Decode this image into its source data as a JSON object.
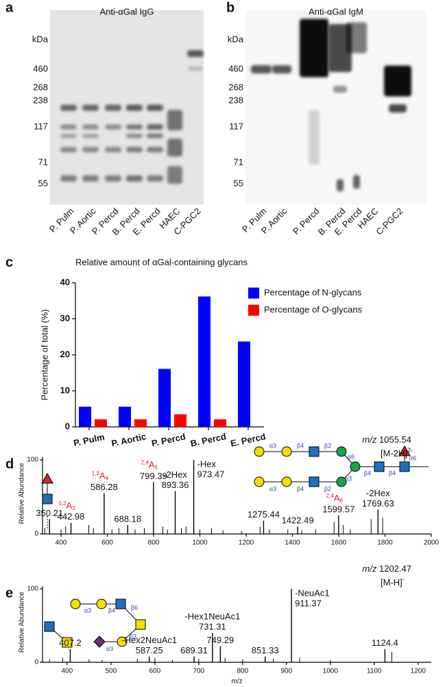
{
  "panels": [
    {
      "label": "a",
      "title": "Anti-αGal IgG",
      "unit": "kDa",
      "markers": [
        460,
        268,
        238,
        117,
        71,
        55
      ],
      "lanes": [
        "P. Pulm",
        "P. Aortic",
        "P. Percd",
        "B. Percd",
        "E. Percd",
        "HAEC",
        "C-PGC2"
      ]
    },
    {
      "label": "b",
      "title": "Anti-αGal IgM",
      "unit": "kDa",
      "markers": [
        460,
        268,
        238,
        117,
        71,
        55
      ],
      "lanes": [
        "P. Pulm",
        "P. Aortic",
        "P. Percd",
        "B. Percd",
        "E. Percd",
        "HAEC",
        "C-PGC2"
      ]
    }
  ],
  "chart_data": [
    {
      "type": "bar",
      "label": "c",
      "title": "Relative amount of αGal-containing glycans",
      "y_label": "Percentage of total (%)",
      "categories": [
        "P. Pulm",
        "P. Aortic",
        "P. Percd",
        "B. Percd",
        "E. Percd"
      ],
      "series": [
        {
          "name": "Percentage of N-glycans",
          "color": "#0000ff",
          "values": [
            5.6,
            5.6,
            16.1,
            36.2,
            23.7
          ]
        },
        {
          "name": "Percentage of O-glycans",
          "color": "#ff0000",
          "values": [
            2.1,
            2.1,
            3.5,
            2.1,
            null
          ]
        }
      ],
      "ylim": [
        0,
        40
      ],
      "yticks": [
        0,
        10,
        20,
        30,
        40
      ]
    },
    {
      "type": "spectrum",
      "label": "d",
      "y_label": "Relative Abundance",
      "precursor_prefix": "m/z",
      "precursor": 1055.54,
      "ion": "[M-2H]",
      "charge": "2-",
      "color": "#000000",
      "x": [
        350.21,
        442.98,
        586.28,
        688.18,
        799.39,
        893.36,
        973.47,
        1275.44,
        1422.49,
        1599.57,
        1769.63
      ],
      "values": [
        20,
        15,
        55,
        12,
        70,
        58,
        100,
        18,
        10,
        25,
        33
      ],
      "notes": [
        null,
        null,
        null,
        null,
        null,
        "-2Hex",
        "-Hex",
        null,
        null,
        null,
        "-2Hex"
      ],
      "fragments": [
        null,
        {
          "sup": "0,2",
          "main": "A",
          "sub": "3"
        },
        {
          "sup": "1,3",
          "main": "A",
          "sub": "4"
        },
        null,
        {
          "sup": "2,4",
          "main": "A",
          "sub": "6"
        },
        null,
        null,
        null,
        null,
        {
          "sup": "2,4",
          "main": "A",
          "sub": "6"
        },
        null
      ],
      "minor": {
        "x": [
          330,
          400,
          420,
          520,
          540,
          620,
          650,
          720,
          760,
          840,
          860,
          920,
          940,
          1000,
          1050,
          1100,
          1180,
          1260,
          1300,
          1380,
          1440,
          1500,
          1580,
          1620,
          1650,
          1740,
          1790
        ],
        "values": [
          8,
          6,
          10,
          12,
          8,
          6,
          8,
          6,
          8,
          10,
          6,
          8,
          10,
          6,
          8,
          5,
          4,
          10,
          6,
          6,
          5,
          6,
          16,
          12,
          6,
          20,
          22
        ]
      },
      "xlim": [
        320,
        2000
      ],
      "xticks": [
        400,
        600,
        800,
        1000,
        1200,
        1400,
        1600,
        1800,
        2000
      ],
      "ylim": [
        0,
        100
      ],
      "yticks": [
        0,
        100
      ],
      "glycan_labels": [
        "α3",
        "β4",
        "β2",
        "α6",
        "α3",
        "β4",
        "β2",
        "α3",
        "β4",
        "β4",
        "α6"
      ]
    },
    {
      "type": "spectrum",
      "label": "e",
      "y_label": "Relative Abundance",
      "x_label": "m/z",
      "precursor_prefix": "m/z",
      "precursor": 1202.47,
      "ion": "[M-H]",
      "charge": "-",
      "color": "#000000",
      "x": [
        407.2,
        587.25,
        689.31,
        731.31,
        749.29,
        851.33,
        911.37,
        1124.4
      ],
      "values": [
        18,
        8,
        8,
        40,
        22,
        8,
        100,
        18
      ],
      "notes": [
        null,
        "-Hex2NeuAc1",
        null,
        "-Hex1NeuAc1",
        null,
        null,
        "-NeuAc1",
        null
      ],
      "fragments": [
        null,
        null,
        null,
        null,
        null,
        null,
        null,
        null
      ],
      "minor": {
        "x": [
          360,
          390,
          450,
          480,
          560,
          600,
          640,
          700,
          760,
          800,
          870,
          930,
          1000,
          1140
        ],
        "values": [
          4,
          6,
          4,
          3,
          5,
          6,
          3,
          5,
          6,
          4,
          5,
          6,
          3,
          14
        ]
      },
      "xlim": [
        344,
        1230
      ],
      "xticks": [
        400,
        500,
        600,
        700,
        800,
        900,
        1000,
        1100,
        1200
      ],
      "ylim": [
        0,
        100
      ],
      "yticks": [
        0,
        100
      ],
      "glycan_labels": [
        "α3",
        "β4",
        "β6",
        "α3",
        "β3"
      ]
    }
  ]
}
